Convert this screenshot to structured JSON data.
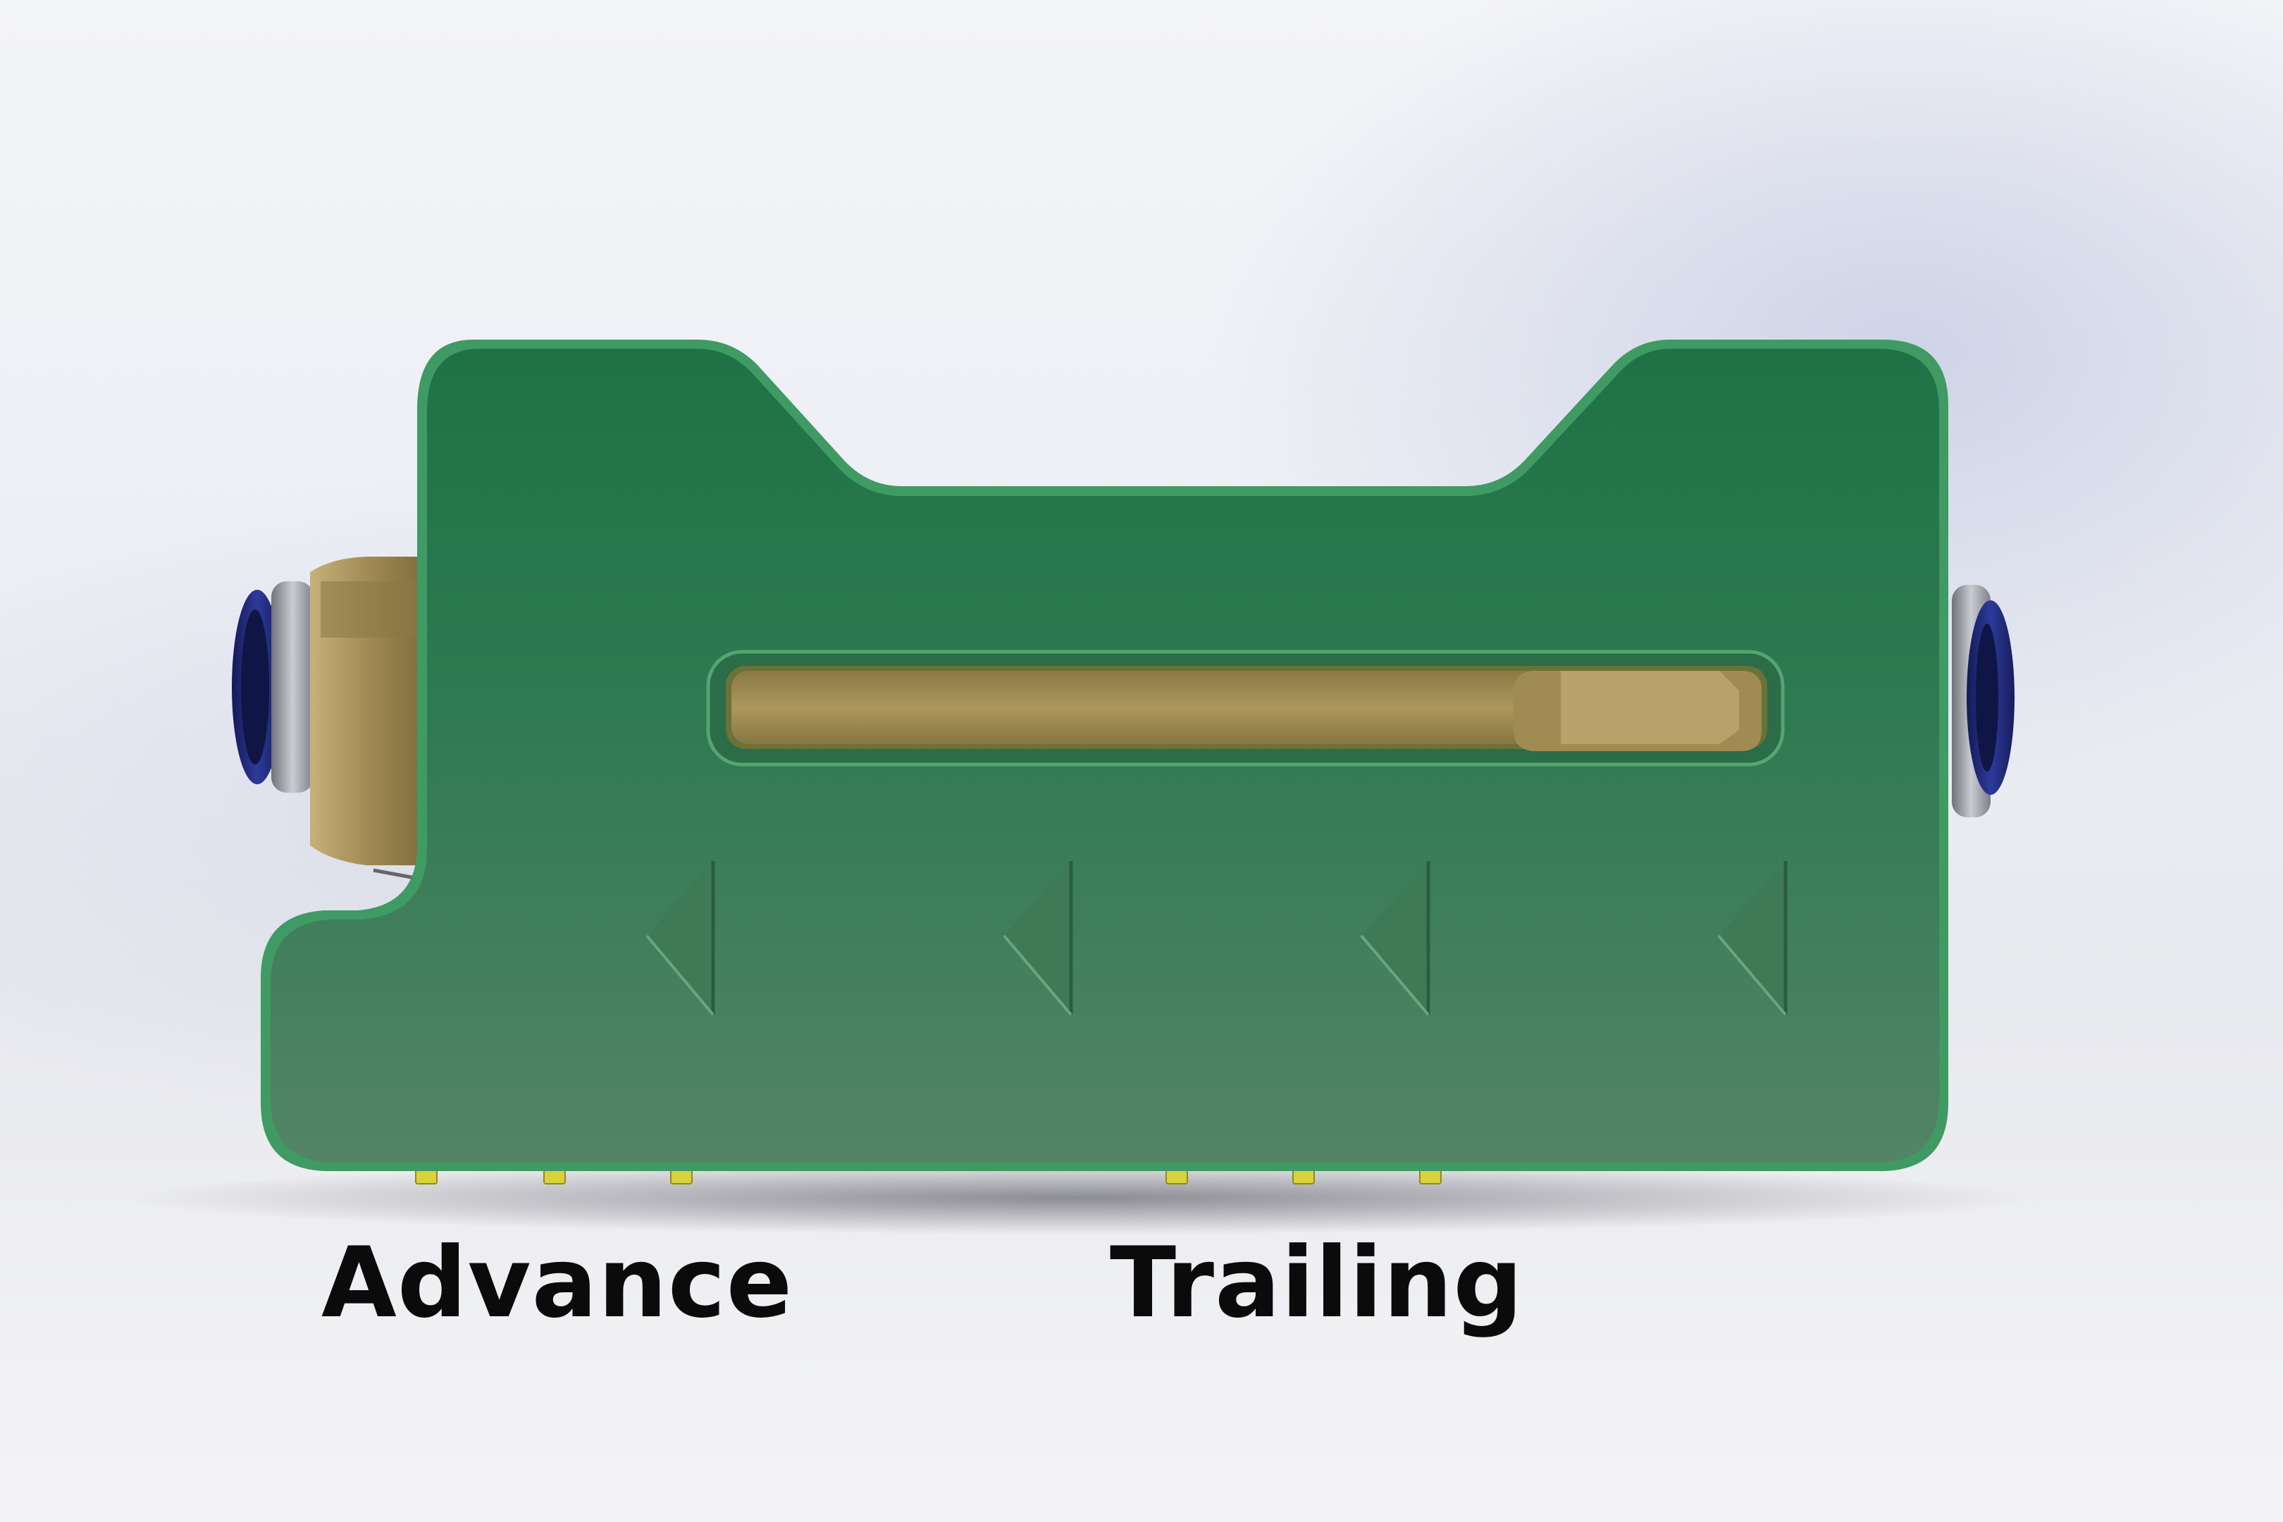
{
  "labels": {
    "advance": "Advance",
    "trailing": "Trailing"
  },
  "colors": {
    "housing_green": "#2b7a4f",
    "housing_green_light": "#4f8a63",
    "brass": "#b49a5c",
    "blue_fitting": "#1f2a7a"
  },
  "icons": {
    "direction_arrows": "left-pointing-triangle-icon",
    "direction_arrow_count": 4
  }
}
